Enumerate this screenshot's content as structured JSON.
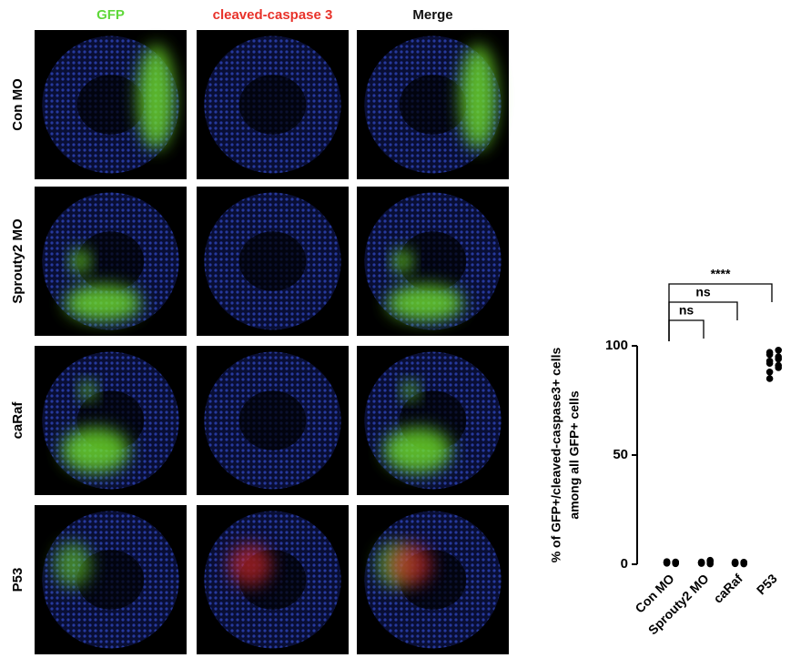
{
  "panels": {
    "columns": [
      "GFP",
      "cleaved-caspase 3",
      "Merge"
    ],
    "rows": [
      "Con MO",
      "Sprouty2 MO",
      "caRaf",
      "P53"
    ]
  },
  "chart_data": {
    "type": "dot",
    "ylabel": [
      "% of GFP+/cleaved-caspase3+ cells",
      "among all GFP+ cells"
    ],
    "categories": [
      "Con MO",
      "Sprouty2 MO",
      "caRaf",
      "P53"
    ],
    "points": [
      [
        1,
        0.5,
        1.2,
        0.8,
        0.3,
        1,
        0.6,
        0.9
      ],
      [
        1.5,
        0.8,
        0.4,
        1.2,
        0.2,
        1,
        0.6,
        1.8
      ],
      [
        0.8,
        0.3,
        1,
        0.5,
        0.2,
        0.7,
        0.4,
        0.9
      ],
      [
        98,
        97,
        96,
        95,
        94,
        93,
        92,
        91,
        90,
        88,
        85
      ]
    ],
    "color": "#000000",
    "annotations": [
      "ns",
      "ns",
      "****"
    ],
    "ylim": [
      0,
      100
    ],
    "yticks": [
      0,
      50,
      100
    ]
  }
}
